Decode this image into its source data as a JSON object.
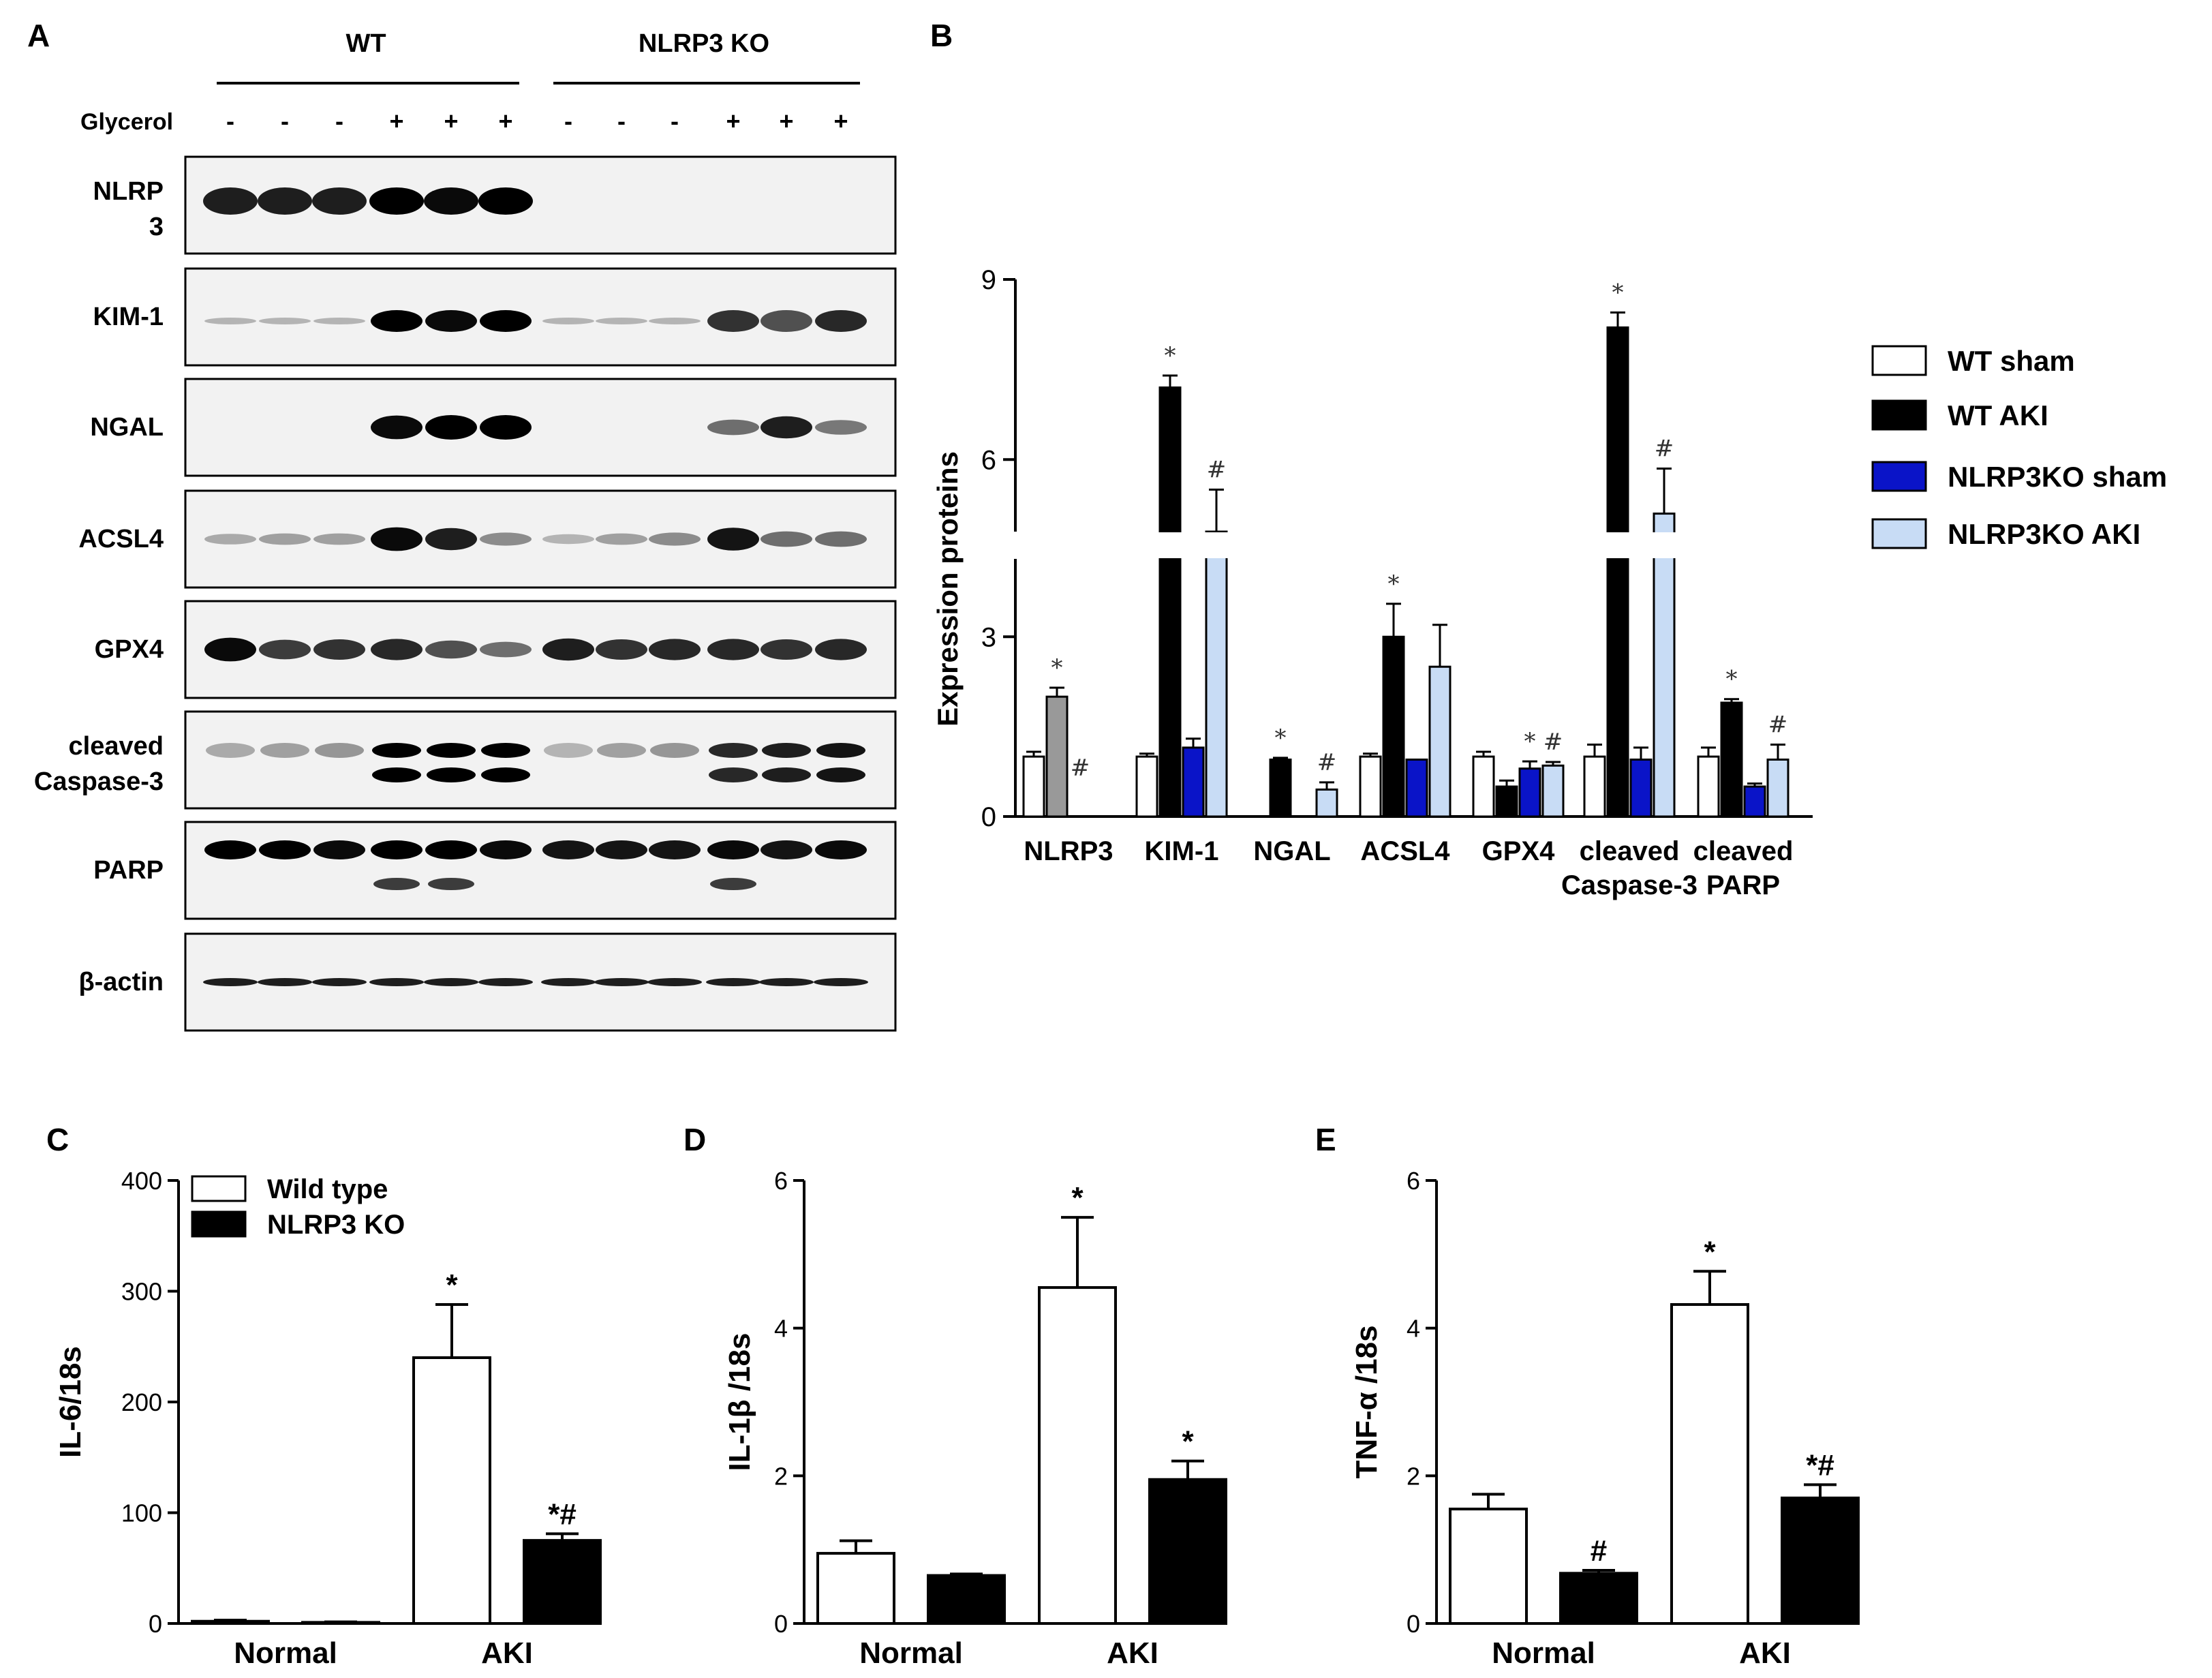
{
  "panels": {
    "A": "A",
    "B": "B",
    "C": "C",
    "D": "D",
    "E": "E"
  },
  "blot": {
    "groups": [
      {
        "label": "WT"
      },
      {
        "label": "NLRP3 KO"
      }
    ],
    "treatment_label": "Glycerol",
    "lanes": [
      "-",
      "-",
      "-",
      "+",
      "+",
      "+",
      "-",
      "-",
      "-",
      "+",
      "+",
      "+"
    ],
    "rows": [
      {
        "label": "NLRP 3",
        "label_lines": [
          "NLRP",
          "3"
        ],
        "bands": [
          0.85,
          0.85,
          0.85,
          1.0,
          0.95,
          1.0,
          0,
          0,
          0,
          0,
          0,
          0
        ]
      },
      {
        "label": "KIM-1",
        "label_lines": [
          "KIM-1"
        ],
        "bands": [
          0.1,
          0.1,
          0.1,
          1.0,
          0.95,
          1.0,
          0.1,
          0.1,
          0.1,
          0.75,
          0.6,
          0.8
        ]
      },
      {
        "label": "NGAL",
        "label_lines": [
          "NGAL"
        ],
        "bands": [
          0,
          0,
          0,
          0.95,
          1.0,
          1.0,
          0,
          0,
          0,
          0.45,
          0.85,
          0.4
        ]
      },
      {
        "label": "ACSL4",
        "label_lines": [
          "ACSL4"
        ],
        "bands": [
          0.15,
          0.2,
          0.2,
          0.95,
          0.85,
          0.3,
          0.1,
          0.2,
          0.3,
          0.9,
          0.45,
          0.45
        ]
      },
      {
        "label": "GPX4",
        "label_lines": [
          "GPX4"
        ],
        "bands": [
          0.95,
          0.7,
          0.75,
          0.8,
          0.6,
          0.45,
          0.85,
          0.75,
          0.8,
          0.8,
          0.75,
          0.8
        ]
      },
      {
        "label": "cleaved Caspase-3",
        "label_lines": [
          "cleaved",
          "Caspase-3"
        ],
        "bands": [
          0.15,
          0.2,
          0.25,
          1.0,
          1.0,
          1.0,
          0.1,
          0.2,
          0.25,
          0.8,
          0.85,
          0.9
        ]
      },
      {
        "label": "PARP",
        "label_lines": [
          "PARP"
        ],
        "bands": [
          1.0,
          1.0,
          0.95,
          1.0,
          1.0,
          0.95,
          0.9,
          0.9,
          0.9,
          0.95,
          0.9,
          0.95
        ]
      },
      {
        "label": "β-actin",
        "label_lines": [
          "β-actin"
        ],
        "bands": [
          0.85,
          0.85,
          0.85,
          0.85,
          0.85,
          0.85,
          0.85,
          0.85,
          0.85,
          0.85,
          0.85,
          0.85
        ]
      }
    ]
  },
  "legend_B": [
    {
      "label": "WT sham",
      "color": "#ffffff"
    },
    {
      "label": "WT AKI",
      "color": "#000000"
    },
    {
      "label": "NLRP3KO sham",
      "color": "#0a14c8"
    },
    {
      "label": "NLRP3KO AKI",
      "color": "#c8dcf5"
    }
  ],
  "legend_C": [
    {
      "label": "Wild type",
      "color": "#ffffff"
    },
    {
      "label": "NLRP3 KO",
      "color": "#000000"
    }
  ],
  "chart_data": [
    {
      "panel": "B",
      "type": "bar",
      "ylabel": "Expression proteins",
      "ylim": [
        0,
        9
      ],
      "y_axis_break": [
        4.3,
        4.8
      ],
      "yticks": [
        0,
        3,
        6,
        9
      ],
      "categories": [
        "NLRP3",
        "KIM-1",
        "NGAL",
        "ACSL4",
        "GPX4",
        "cleaved Caspase-3",
        "cleaved PARP"
      ],
      "category_lines": [
        [
          "NLRP3"
        ],
        [
          "KIM-1"
        ],
        [
          "NGAL"
        ],
        [
          "ACSL4"
        ],
        [
          "GPX4"
        ],
        [
          "cleaved",
          "Caspase-3"
        ],
        [
          "cleaved",
          "PARP"
        ]
      ],
      "series": [
        {
          "name": "WT sham",
          "values": [
            1.0,
            1.0,
            0,
            1.0,
            1.0,
            1.0,
            1.0
          ],
          "errors": [
            0.08,
            0.05,
            0,
            0.05,
            0.08,
            0.2,
            0.15
          ],
          "annotations": [
            "",
            "",
            "",
            "",
            "",
            "",
            ""
          ]
        },
        {
          "name": "WT AKI",
          "values": [
            2.0,
            7.2,
            0.95,
            3.0,
            0.5,
            8.2,
            1.9
          ],
          "errors": [
            0.15,
            0.2,
            0.03,
            0.55,
            0.1,
            0.25,
            0.06
          ],
          "annotations": [
            "*",
            "*",
            "*",
            "*",
            "",
            "*",
            "*"
          ]
        },
        {
          "name": "NLRP3KO sham",
          "values": [
            0,
            1.15,
            0,
            0.95,
            0.8,
            0.95,
            0.5
          ],
          "errors": [
            0,
            0.15,
            0,
            0,
            0.12,
            0.2,
            0.05
          ],
          "annotations": [
            "#",
            "",
            "",
            "",
            "*",
            "",
            ""
          ]
        },
        {
          "name": "NLRP3KO AKI",
          "values": [
            0,
            4.8,
            0.45,
            2.5,
            0.85,
            5.1,
            0.95
          ],
          "errors": [
            0,
            0.7,
            0.12,
            0.7,
            0.06,
            0.75,
            0.25
          ],
          "annotations": [
            "",
            "#",
            "#",
            "",
            "#",
            "#",
            "#"
          ]
        }
      ]
    },
    {
      "panel": "C",
      "type": "bar",
      "ylabel": "IL-6/18s",
      "ylim": [
        0,
        400
      ],
      "yticks": [
        0,
        100,
        200,
        300,
        400
      ],
      "categories": [
        "Normal",
        "AKI"
      ],
      "series": [
        {
          "name": "Wild type",
          "values": [
            2,
            240
          ],
          "errors": [
            1,
            48
          ],
          "annotations": [
            "",
            "*"
          ]
        },
        {
          "name": "NLRP3 KO",
          "values": [
            1,
            75
          ],
          "errors": [
            0.5,
            6
          ],
          "annotations": [
            "",
            "*#"
          ]
        }
      ]
    },
    {
      "panel": "D",
      "type": "bar",
      "ylabel": "IL-1β /18s",
      "ylim": [
        0,
        6
      ],
      "yticks": [
        0,
        2,
        4,
        6
      ],
      "categories": [
        "Normal",
        "AKI"
      ],
      "series": [
        {
          "name": "Wild type",
          "values": [
            0.95,
            4.55
          ],
          "errors": [
            0.17,
            0.95
          ],
          "annotations": [
            "",
            "*"
          ]
        },
        {
          "name": "NLRP3 KO",
          "values": [
            0.65,
            1.95
          ],
          "errors": [
            0.02,
            0.25
          ],
          "annotations": [
            "",
            "*"
          ]
        }
      ]
    },
    {
      "panel": "E",
      "type": "bar",
      "ylabel": "TNF-α /18s",
      "ylim": [
        0,
        6
      ],
      "yticks": [
        0,
        2,
        4,
        6
      ],
      "categories": [
        "Normal",
        "AKI"
      ],
      "series": [
        {
          "name": "Wild type",
          "values": [
            1.55,
            4.32
          ],
          "errors": [
            0.2,
            0.45
          ],
          "annotations": [
            "",
            "*"
          ]
        },
        {
          "name": "NLRP3 KO",
          "values": [
            0.68,
            1.7
          ],
          "errors": [
            0.04,
            0.18
          ],
          "annotations": [
            "#",
            "*#"
          ]
        }
      ]
    }
  ]
}
